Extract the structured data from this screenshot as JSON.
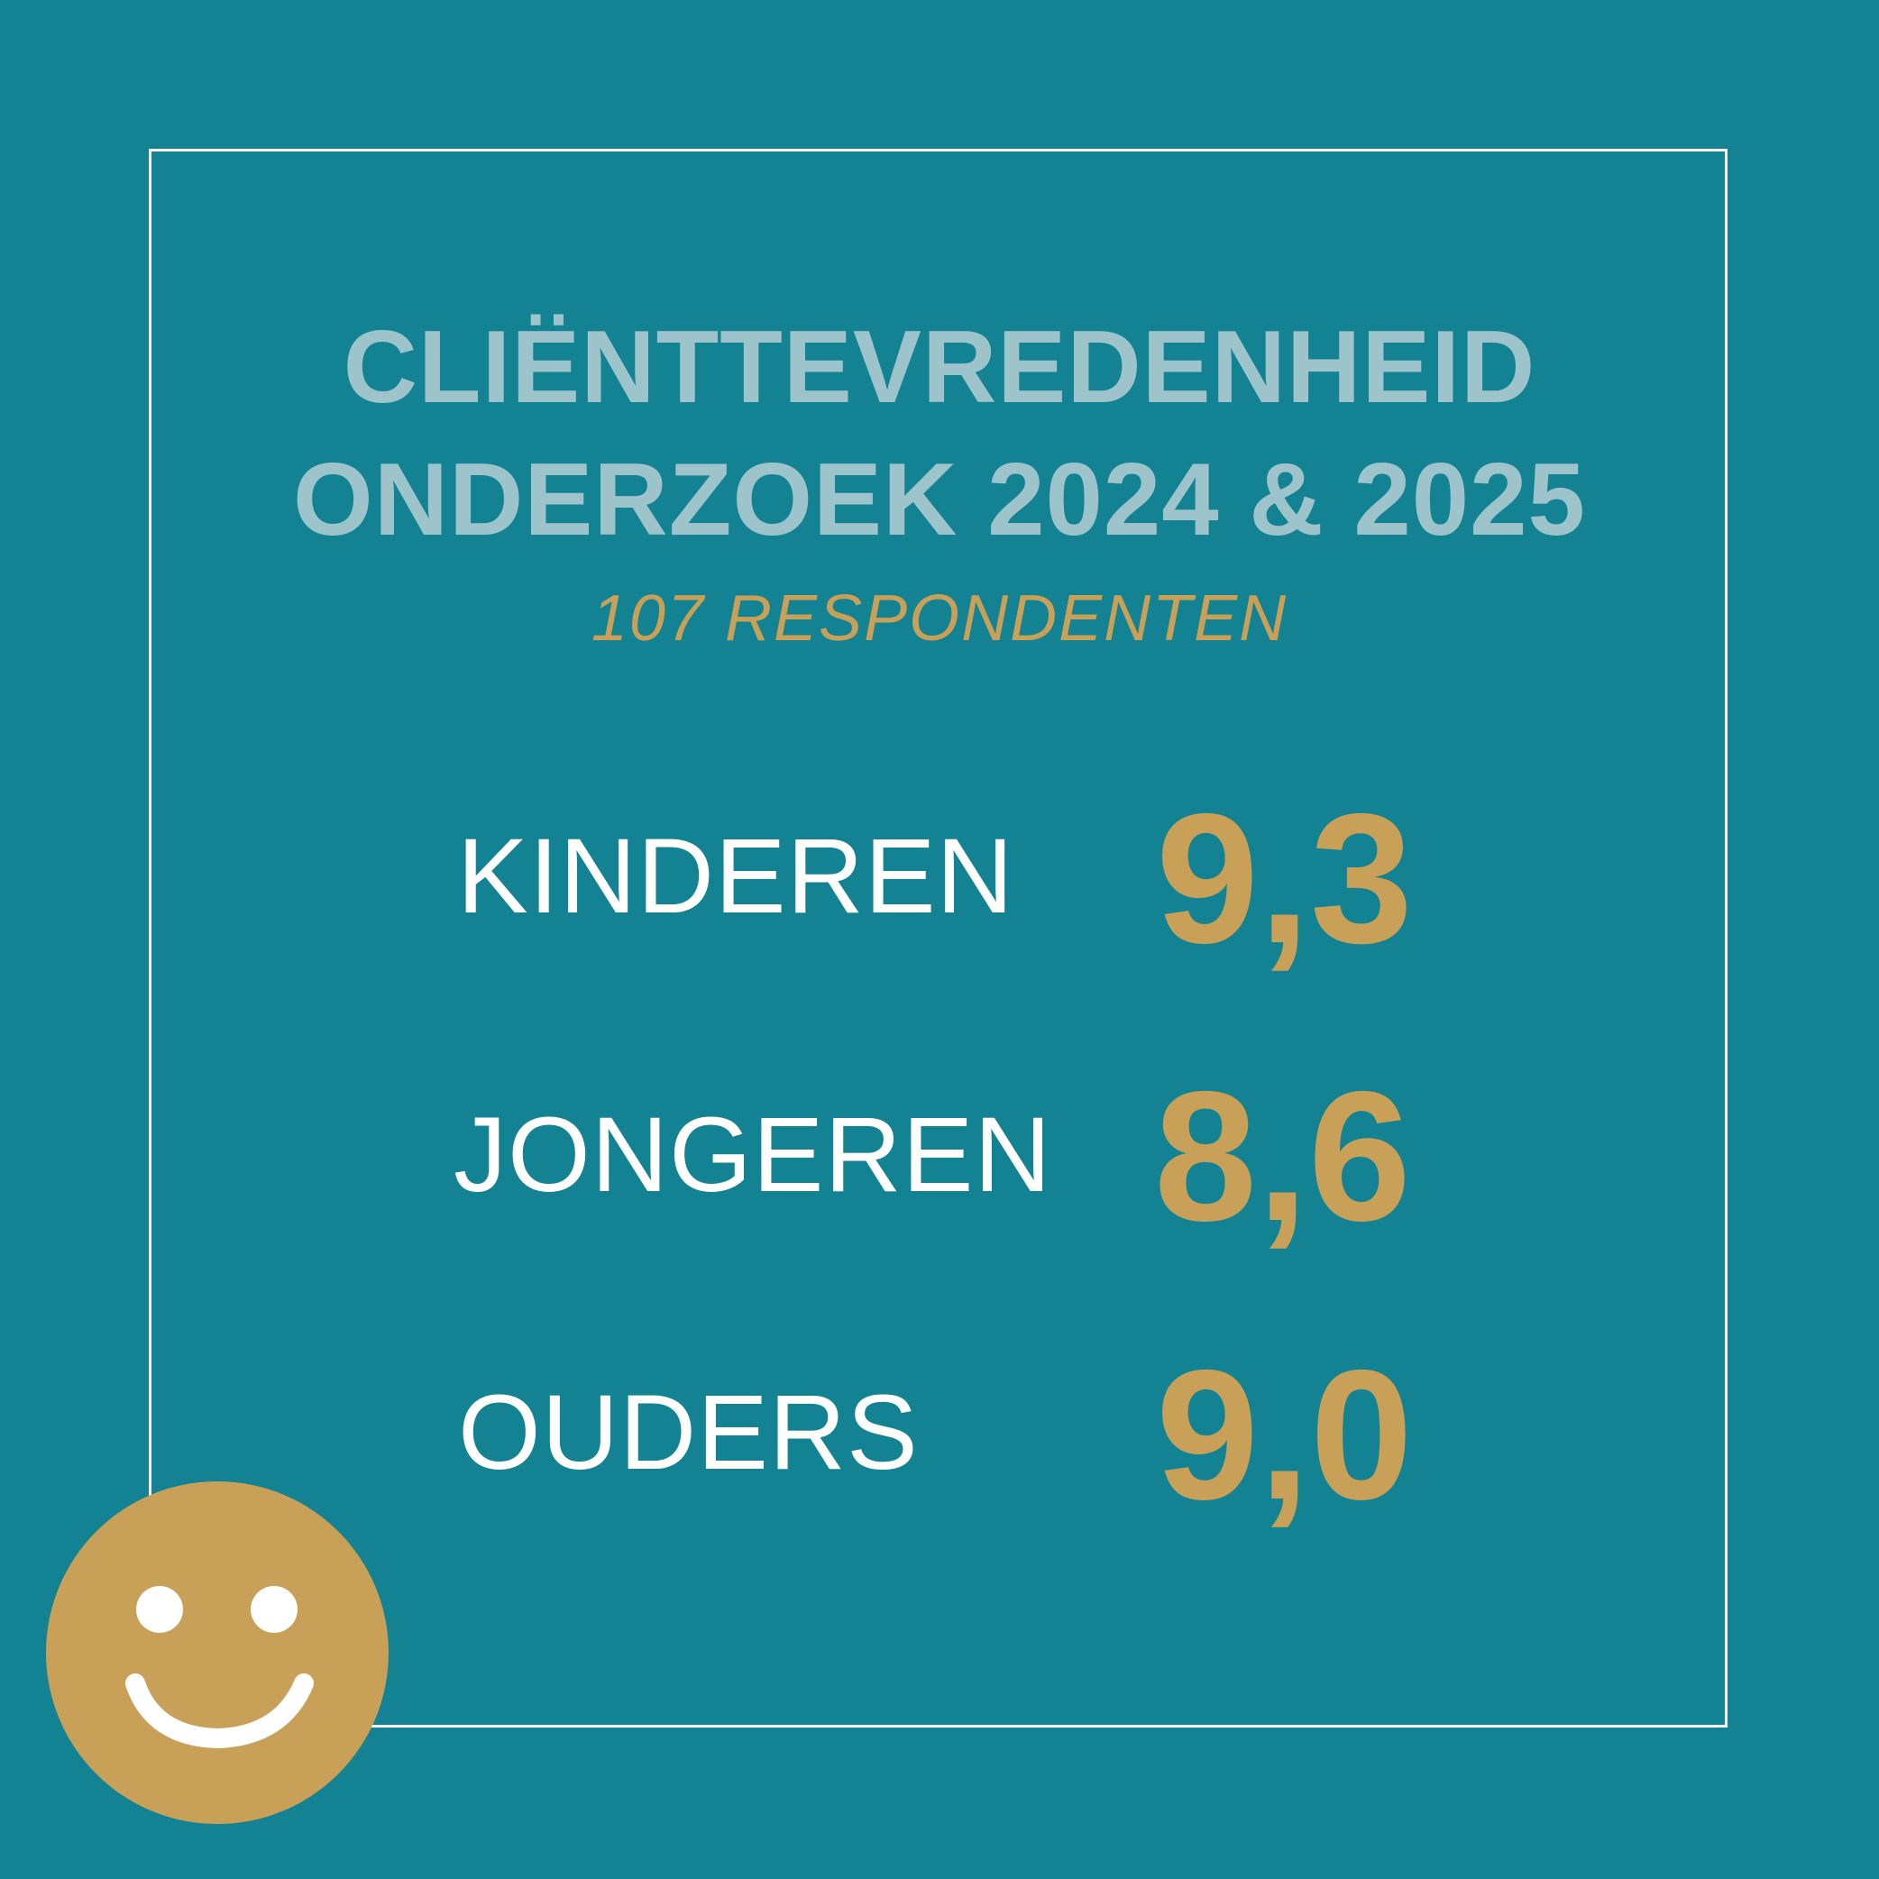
{
  "header": {
    "title_line1": "CLIËNTTEVREDENHEID",
    "title_line2": "ONDERZOEK 2024 & 2025",
    "subtitle": "107 RESPONDENTEN"
  },
  "scores": [
    {
      "label": "KINDEREN",
      "value": "9,3"
    },
    {
      "label": "JONGEREN",
      "value": "8,6"
    },
    {
      "label": "OUDERS",
      "value": "9,0"
    }
  ],
  "colors": {
    "background": "#138393",
    "title": "#9ec4cb",
    "accent_gold": "#c9a058",
    "label_white": "#ffffff"
  },
  "icons": {
    "smiley": "smiley-face-icon"
  }
}
